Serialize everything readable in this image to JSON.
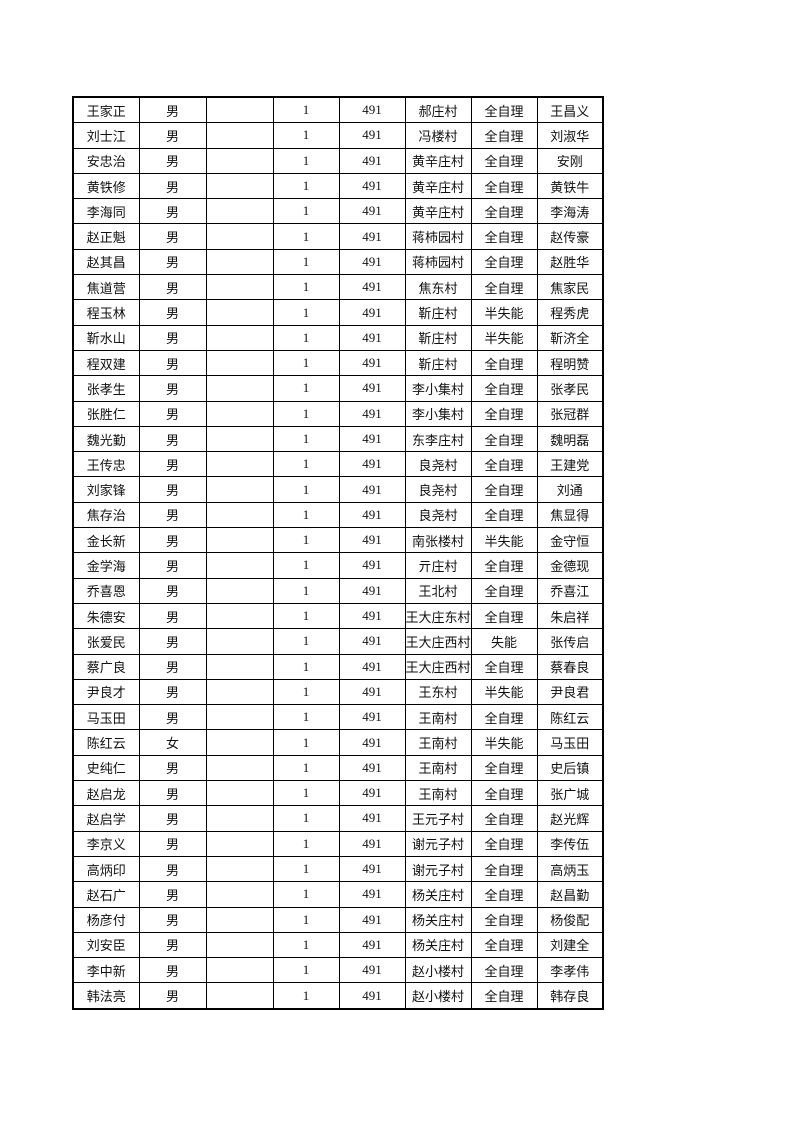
{
  "rows": [
    [
      "王家正",
      "男",
      "",
      "1",
      "491",
      "郝庄村",
      "全自理",
      "王昌义"
    ],
    [
      "刘士江",
      "男",
      "",
      "1",
      "491",
      "冯楼村",
      "全自理",
      "刘淑华"
    ],
    [
      "安忠治",
      "男",
      "",
      "1",
      "491",
      "黄辛庄村",
      "全自理",
      "安刚"
    ],
    [
      "黄铁修",
      "男",
      "",
      "1",
      "491",
      "黄辛庄村",
      "全自理",
      "黄铁牛"
    ],
    [
      "李海同",
      "男",
      "",
      "1",
      "491",
      "黄辛庄村",
      "全自理",
      "李海涛"
    ],
    [
      "赵正魁",
      "男",
      "",
      "1",
      "491",
      "蒋柿园村",
      "全自理",
      "赵传豪"
    ],
    [
      "赵其昌",
      "男",
      "",
      "1",
      "491",
      "蒋柿园村",
      "全自理",
      "赵胜华"
    ],
    [
      "焦道营",
      "男",
      "",
      "1",
      "491",
      "焦东村",
      "全自理",
      "焦家民"
    ],
    [
      "程玉林",
      "男",
      "",
      "1",
      "491",
      "靳庄村",
      "半失能",
      "程秀虎"
    ],
    [
      "靳水山",
      "男",
      "",
      "1",
      "491",
      "靳庄村",
      "半失能",
      "靳济全"
    ],
    [
      "程双建",
      "男",
      "",
      "1",
      "491",
      "靳庄村",
      "全自理",
      "程明赞"
    ],
    [
      "张孝生",
      "男",
      "",
      "1",
      "491",
      "李小集村",
      "全自理",
      "张孝民"
    ],
    [
      "张胜仁",
      "男",
      "",
      "1",
      "491",
      "李小集村",
      "全自理",
      "张冠群"
    ],
    [
      "魏光勤",
      "男",
      "",
      "1",
      "491",
      "东李庄村",
      "全自理",
      "魏明磊"
    ],
    [
      "王传忠",
      "男",
      "",
      "1",
      "491",
      "良尧村",
      "全自理",
      "王建党"
    ],
    [
      "刘家锋",
      "男",
      "",
      "1",
      "491",
      "良尧村",
      "全自理",
      "刘通"
    ],
    [
      "焦存治",
      "男",
      "",
      "1",
      "491",
      "良尧村",
      "全自理",
      "焦显得"
    ],
    [
      "金长新",
      "男",
      "",
      "1",
      "491",
      "南张楼村",
      "半失能",
      "金守恒"
    ],
    [
      "金学海",
      "男",
      "",
      "1",
      "491",
      "亓庄村",
      "全自理",
      "金德现"
    ],
    [
      "乔喜恩",
      "男",
      "",
      "1",
      "491",
      "王北村",
      "全自理",
      "乔喜江"
    ],
    [
      "朱德安",
      "男",
      "",
      "1",
      "491",
      "王大庄东村",
      "全自理",
      "朱启祥"
    ],
    [
      "张爱民",
      "男",
      "",
      "1",
      "491",
      "王大庄西村",
      "失能",
      "张传启"
    ],
    [
      "蔡广良",
      "男",
      "",
      "1",
      "491",
      "王大庄西村",
      "全自理",
      "蔡春良"
    ],
    [
      "尹良才",
      "男",
      "",
      "1",
      "491",
      "王东村",
      "半失能",
      "尹良君"
    ],
    [
      "马玉田",
      "男",
      "",
      "1",
      "491",
      "王南村",
      "全自理",
      "陈红云"
    ],
    [
      "陈红云",
      "女",
      "",
      "1",
      "491",
      "王南村",
      "半失能",
      "马玉田"
    ],
    [
      "史纯仁",
      "男",
      "",
      "1",
      "491",
      "王南村",
      "全自理",
      "史后镇"
    ],
    [
      "赵启龙",
      "男",
      "",
      "1",
      "491",
      "王南村",
      "全自理",
      "张广城"
    ],
    [
      "赵启学",
      "男",
      "",
      "1",
      "491",
      "王元子村",
      "全自理",
      "赵光辉"
    ],
    [
      "李京义",
      "男",
      "",
      "1",
      "491",
      "谢元子村",
      "全自理",
      "李传伍"
    ],
    [
      "高炳印",
      "男",
      "",
      "1",
      "491",
      "谢元子村",
      "全自理",
      "高炳玉"
    ],
    [
      "赵石广",
      "男",
      "",
      "1",
      "491",
      "杨关庄村",
      "全自理",
      "赵昌勤"
    ],
    [
      "杨彦付",
      "男",
      "",
      "1",
      "491",
      "杨关庄村",
      "全自理",
      "杨俊配"
    ],
    [
      "刘安臣",
      "男",
      "",
      "1",
      "491",
      "杨关庄村",
      "全自理",
      "刘建全"
    ],
    [
      "李中新",
      "男",
      "",
      "1",
      "491",
      "赵小楼村",
      "全自理",
      "李孝伟"
    ],
    [
      "韩法亮",
      "男",
      "",
      "1",
      "491",
      "赵小楼村",
      "全自理",
      "韩存良"
    ]
  ]
}
